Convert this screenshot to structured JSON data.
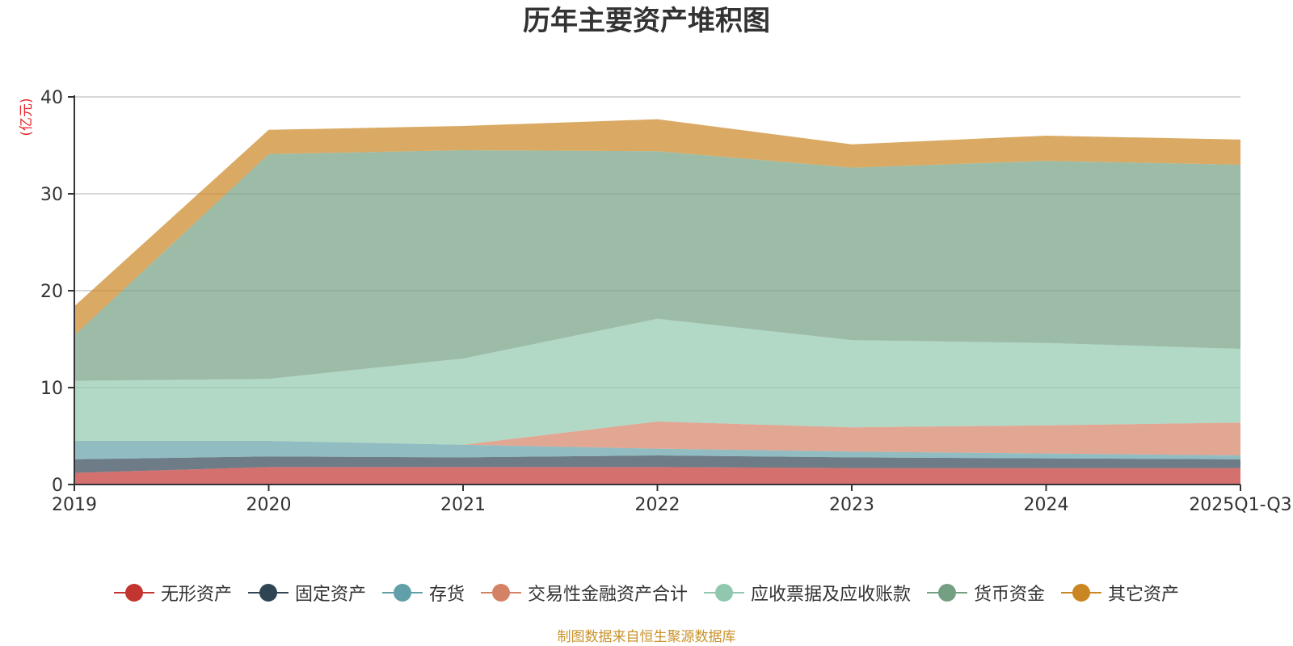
{
  "chart_data": {
    "type": "area",
    "stacked": true,
    "title": "历年主要资产堆积图",
    "ylabel": "(亿元)",
    "xlabel": "",
    "ylim": [
      0,
      40
    ],
    "yticks": [
      0,
      10,
      20,
      30,
      40
    ],
    "grid": true,
    "legend_position": "bottom",
    "categories": [
      "2019",
      "2020",
      "2021",
      "2022",
      "2023",
      "2024",
      "2025Q1-Q3"
    ],
    "series": [
      {
        "name": "无形资产",
        "color": "#c23531",
        "values": [
          1.2,
          1.8,
          1.8,
          1.8,
          1.7,
          1.7,
          1.7
        ]
      },
      {
        "name": "固定资产",
        "color": "#2f4554",
        "values": [
          1.4,
          1.1,
          1.0,
          1.2,
          1.1,
          1.0,
          0.9
        ]
      },
      {
        "name": "存货",
        "color": "#61a0a8",
        "values": [
          1.9,
          1.6,
          1.3,
          0.7,
          0.6,
          0.5,
          0.4
        ]
      },
      {
        "name": "交易性金融资产合计",
        "color": "#d48265",
        "values": [
          0,
          0,
          0,
          2.8,
          2.5,
          2.9,
          3.4
        ]
      },
      {
        "name": "应收票据及应收账款",
        "color": "#91c7ae",
        "values": [
          6.2,
          6.4,
          8.9,
          10.6,
          9.0,
          8.5,
          7.6
        ]
      },
      {
        "name": "货币资金",
        "color": "#749f83",
        "values": [
          4.7,
          23.2,
          21.5,
          17.3,
          17.8,
          18.8,
          19.0
        ]
      },
      {
        "name": "其它资产",
        "color": "#ca8622",
        "values": [
          3.0,
          2.5,
          2.5,
          3.3,
          2.4,
          2.6,
          2.6
        ]
      }
    ]
  },
  "title": "历年主要资产堆积图",
  "y_unit_label": "(亿元)",
  "source_note": "制图数据来自恒生聚源数据库",
  "colors": {
    "unit_label": "#e8262a",
    "source_note": "#c9922a",
    "grid": "#cccccc",
    "axis": "#333333"
  }
}
